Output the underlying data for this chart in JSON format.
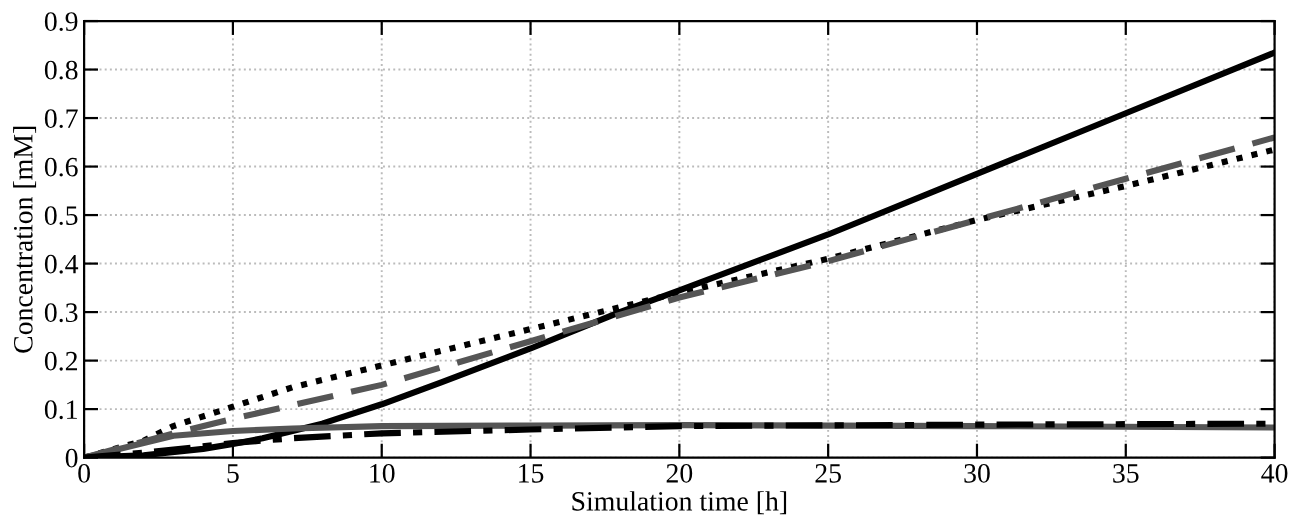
{
  "chart_data": {
    "type": "line",
    "xlabel": "Simulation time [h]",
    "ylabel": "Concentration [mM]",
    "xlim": [
      0,
      40
    ],
    "ylim": [
      0,
      0.9
    ],
    "xticks": [
      0,
      5,
      10,
      15,
      20,
      25,
      30,
      35,
      40
    ],
    "yticks": [
      0,
      0.1,
      0.2,
      0.3,
      0.4,
      0.5,
      0.6,
      0.7,
      0.8,
      0.9
    ],
    "grid": true,
    "legend": false,
    "series": [
      {
        "color": "#000000",
        "line_style": "solid",
        "x": [
          0,
          2,
          4,
          5,
          6,
          8,
          10,
          12,
          15,
          18,
          20,
          25,
          30,
          35,
          40
        ],
        "values": [
          0,
          0.005,
          0.018,
          0.028,
          0.04,
          0.07,
          0.11,
          0.155,
          0.225,
          0.3,
          0.345,
          0.46,
          0.585,
          0.71,
          0.835
        ]
      },
      {
        "color": "#000000",
        "line_style": "dotted",
        "x": [
          0,
          2,
          3,
          5,
          7,
          10,
          15,
          20,
          25,
          30,
          35,
          40
        ],
        "values": [
          0,
          0.035,
          0.065,
          0.105,
          0.145,
          0.19,
          0.265,
          0.34,
          0.41,
          0.49,
          0.56,
          0.635
        ]
      },
      {
        "color": "#555555",
        "line_style": "dashed",
        "x": [
          0,
          3,
          5,
          10,
          15,
          20,
          25,
          30,
          35,
          40
        ],
        "values": [
          0,
          0.05,
          0.08,
          0.15,
          0.24,
          0.33,
          0.405,
          0.49,
          0.575,
          0.66
        ]
      },
      {
        "color": "#555555",
        "line_style": "solid",
        "x": [
          0,
          2,
          3,
          5,
          7,
          10,
          15,
          20,
          30,
          40
        ],
        "values": [
          0,
          0.03,
          0.045,
          0.055,
          0.06,
          0.065,
          0.066,
          0.067,
          0.065,
          0.062
        ]
      },
      {
        "color": "#000000",
        "line_style": "dashdot",
        "x": [
          0,
          2,
          5,
          7,
          10,
          15,
          20,
          30,
          40
        ],
        "values": [
          0,
          0.01,
          0.03,
          0.04,
          0.05,
          0.058,
          0.065,
          0.068,
          0.07
        ]
      }
    ]
  }
}
